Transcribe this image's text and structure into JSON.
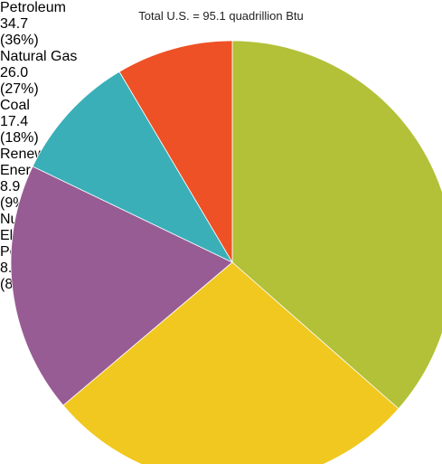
{
  "chart_data": {
    "type": "pie",
    "title": "Total U.S. = 95.1 quadrillion Btu",
    "categories": [
      "Petroleum",
      "Natural Gas",
      "Coal",
      "Renewable Energy",
      "Nuclear Electric Power"
    ],
    "values": [
      34.7,
      26.0,
      17.4,
      8.9,
      8.1
    ],
    "value_labels": [
      "34.7",
      "26.0",
      "17.4",
      "8.9",
      "8.1"
    ],
    "percent_labels": [
      "(36%)",
      "(27%)",
      "(18%)",
      "(9%)",
      "(8%)"
    ],
    "colors": [
      "#b2c137",
      "#f1c81f",
      "#985c94",
      "#3aafb8",
      "#ee5125"
    ]
  }
}
